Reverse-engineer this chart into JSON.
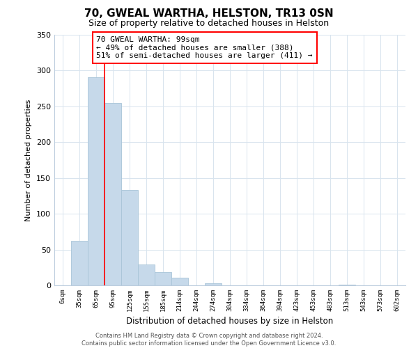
{
  "title": "70, GWEAL WARTHA, HELSTON, TR13 0SN",
  "subtitle": "Size of property relative to detached houses in Helston",
  "xlabel": "Distribution of detached houses by size in Helston",
  "ylabel": "Number of detached properties",
  "bar_labels": [
    "6sqm",
    "35sqm",
    "65sqm",
    "95sqm",
    "125sqm",
    "155sqm",
    "185sqm",
    "214sqm",
    "244sqm",
    "274sqm",
    "304sqm",
    "334sqm",
    "364sqm",
    "394sqm",
    "423sqm",
    "453sqm",
    "483sqm",
    "513sqm",
    "543sqm",
    "573sqm",
    "602sqm"
  ],
  "bar_values": [
    0,
    62,
    291,
    255,
    133,
    29,
    18,
    11,
    0,
    3,
    0,
    0,
    0,
    0,
    0,
    0,
    0,
    1,
    0,
    0,
    0
  ],
  "bar_color": "#c6d9ea",
  "bar_edge_color": "#a8c4d8",
  "ylim": [
    0,
    350
  ],
  "yticks": [
    0,
    50,
    100,
    150,
    200,
    250,
    300,
    350
  ],
  "annotation_title": "70 GWEAL WARTHA: 99sqm",
  "annotation_line1": "← 49% of detached houses are smaller (388)",
  "annotation_line2": "51% of semi-detached houses are larger (411) →",
  "footer_line1": "Contains HM Land Registry data © Crown copyright and database right 2024.",
  "footer_line2": "Contains public sector information licensed under the Open Government Licence v3.0.",
  "property_bar_index": 3,
  "property_line_x": 2.5,
  "background_color": "#ffffff",
  "grid_color": "#d8e4ee"
}
